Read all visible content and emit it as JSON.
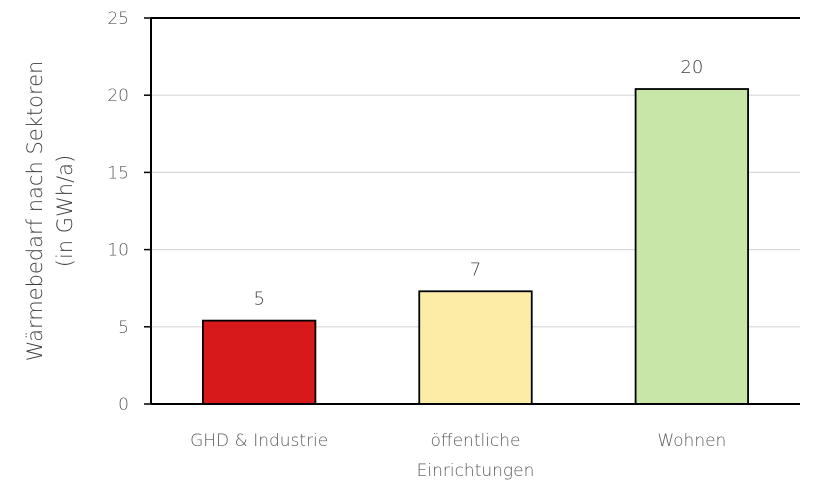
{
  "chart_data": {
    "type": "bar",
    "title": "",
    "xlabel": "",
    "ylabel_lines": [
      "Wärmebedarf nach Sektoren",
      "(in GWh/a)"
    ],
    "ylim": [
      0,
      25
    ],
    "yticks": [
      0,
      5,
      10,
      15,
      20,
      25
    ],
    "grid": true,
    "categories": [
      [
        "GHD & Industrie"
      ],
      [
        "öffentliche",
        "Einrichtungen"
      ],
      [
        "Wohnen"
      ]
    ],
    "values": [
      5.4,
      7.3,
      20.4
    ],
    "data_labels": [
      "5",
      "7",
      "20"
    ],
    "colors": [
      "#d7191c",
      "#fdeca6",
      "#c7e6a8"
    ]
  }
}
